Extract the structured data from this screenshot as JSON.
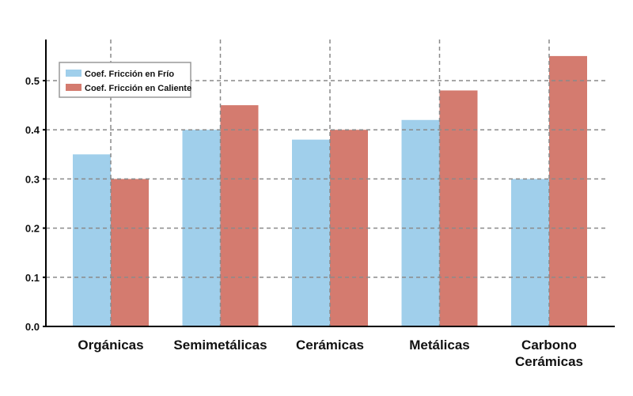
{
  "chart_data": {
    "type": "bar",
    "categories": [
      [
        "Orgánicas"
      ],
      [
        "Semimetálicas"
      ],
      [
        "Cerámicas"
      ],
      [
        "Metálicas"
      ],
      [
        "Carbono",
        "Cerámicas"
      ]
    ],
    "series": [
      {
        "name": "Coef. Fricción en Frío",
        "color": "#a0cfeb",
        "values": [
          0.35,
          0.4,
          0.38,
          0.42,
          0.3
        ]
      },
      {
        "name": "Coef. Fricción en Caliente",
        "color": "#d47b6f",
        "values": [
          0.3,
          0.45,
          0.4,
          0.48,
          0.55
        ]
      }
    ],
    "yticks": [
      "0.0",
      "0.1",
      "0.2",
      "0.3",
      "0.4",
      "0.5"
    ],
    "ylim": [
      0,
      0.58
    ],
    "grid": true,
    "legend": "top-left",
    "title": "",
    "xlabel": "",
    "ylabel": ""
  }
}
